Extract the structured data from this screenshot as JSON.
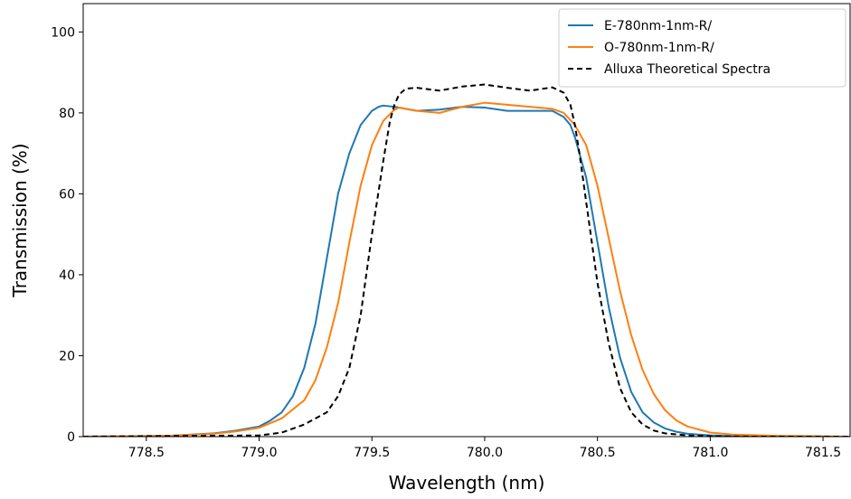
{
  "chart_data": {
    "type": "line",
    "xlabel": "Wavelength (nm)",
    "ylabel": "Transmission (%)",
    "xlim": [
      778.22,
      781.62
    ],
    "ylim": [
      0,
      107
    ],
    "x_ticks": [
      778.5,
      779.0,
      779.5,
      780.0,
      780.5,
      781.0,
      781.5
    ],
    "x_tick_labels": [
      "778.5",
      "779.0",
      "779.5",
      "780.0",
      "780.5",
      "781.0",
      "781.5"
    ],
    "y_ticks": [
      0,
      20,
      40,
      60,
      80,
      100
    ],
    "y_tick_labels": [
      "0",
      "20",
      "40",
      "60",
      "80",
      "100"
    ],
    "grid": false,
    "legend_position": "upper right",
    "series": [
      {
        "name": "E-780nm-1nm-R/",
        "color": "#1f77b4",
        "style": "solid",
        "x": [
          778.22,
          778.6,
          778.8,
          778.9,
          779.0,
          779.05,
          779.1,
          779.15,
          779.2,
          779.25,
          779.3,
          779.35,
          779.4,
          779.45,
          779.5,
          779.53,
          779.55,
          779.6,
          779.65,
          779.7,
          779.8,
          779.9,
          780.0,
          780.1,
          780.2,
          780.3,
          780.35,
          780.38,
          780.4,
          780.45,
          780.5,
          780.55,
          780.6,
          780.65,
          780.7,
          780.75,
          780.8,
          780.85,
          780.9,
          781.0,
          781.1,
          781.3,
          781.62
        ],
        "y": [
          0,
          0.2,
          0.8,
          1.5,
          2.5,
          4,
          6,
          10,
          17,
          28,
          44,
          60,
          70,
          77,
          80.5,
          81.5,
          81.8,
          81.5,
          81,
          80.5,
          80.8,
          81.5,
          81.3,
          80.5,
          80.5,
          80.5,
          79,
          77,
          74,
          64,
          48,
          32,
          19.5,
          11,
          6,
          3.5,
          2,
          1.2,
          0.7,
          0.3,
          0.1,
          0,
          0
        ]
      },
      {
        "name": "O-780nm-1nm-R/",
        "color": "#ff7f0e",
        "style": "solid",
        "x": [
          778.22,
          778.6,
          778.8,
          778.9,
          779.0,
          779.1,
          779.2,
          779.25,
          779.3,
          779.35,
          779.4,
          779.45,
          779.5,
          779.55,
          779.6,
          779.62,
          779.65,
          779.7,
          779.8,
          779.9,
          780.0,
          780.1,
          780.2,
          780.3,
          780.35,
          780.4,
          780.45,
          780.5,
          780.55,
          780.6,
          780.65,
          780.7,
          780.75,
          780.8,
          780.85,
          780.9,
          781.0,
          781.1,
          781.3,
          781.62
        ],
        "y": [
          0,
          0.2,
          0.7,
          1.3,
          2.2,
          4.5,
          9,
          14,
          22,
          33,
          48,
          62,
          72,
          78,
          80.8,
          81.3,
          81,
          80.5,
          80,
          81.5,
          82.5,
          82,
          81.5,
          81,
          80,
          77,
          72,
          62,
          49,
          36,
          25,
          16.5,
          10.5,
          6.5,
          4,
          2.5,
          1,
          0.5,
          0.2,
          0
        ]
      },
      {
        "name": "Alluxa Theoretical Spectra",
        "color": "#000000",
        "style": "dashed",
        "x": [
          778.22,
          779.0,
          779.1,
          779.2,
          779.3,
          779.35,
          779.4,
          779.45,
          779.5,
          779.55,
          779.58,
          779.6,
          779.62,
          779.65,
          779.7,
          779.8,
          779.9,
          780.0,
          780.1,
          780.2,
          780.3,
          780.35,
          780.38,
          780.4,
          780.42,
          780.45,
          780.5,
          780.55,
          780.6,
          780.65,
          780.7,
          780.75,
          780.8,
          780.9,
          781.0,
          781.2,
          781.62
        ],
        "y": [
          0,
          0.3,
          1,
          3,
          6,
          10,
          17,
          30,
          50,
          68,
          78,
          82,
          84.5,
          86,
          86.2,
          85.5,
          86.5,
          87,
          86.2,
          85.5,
          86.3,
          85,
          82,
          77,
          70,
          58,
          38,
          23,
          12,
          6,
          3,
          1.5,
          0.8,
          0.3,
          0.1,
          0,
          0
        ]
      }
    ]
  }
}
